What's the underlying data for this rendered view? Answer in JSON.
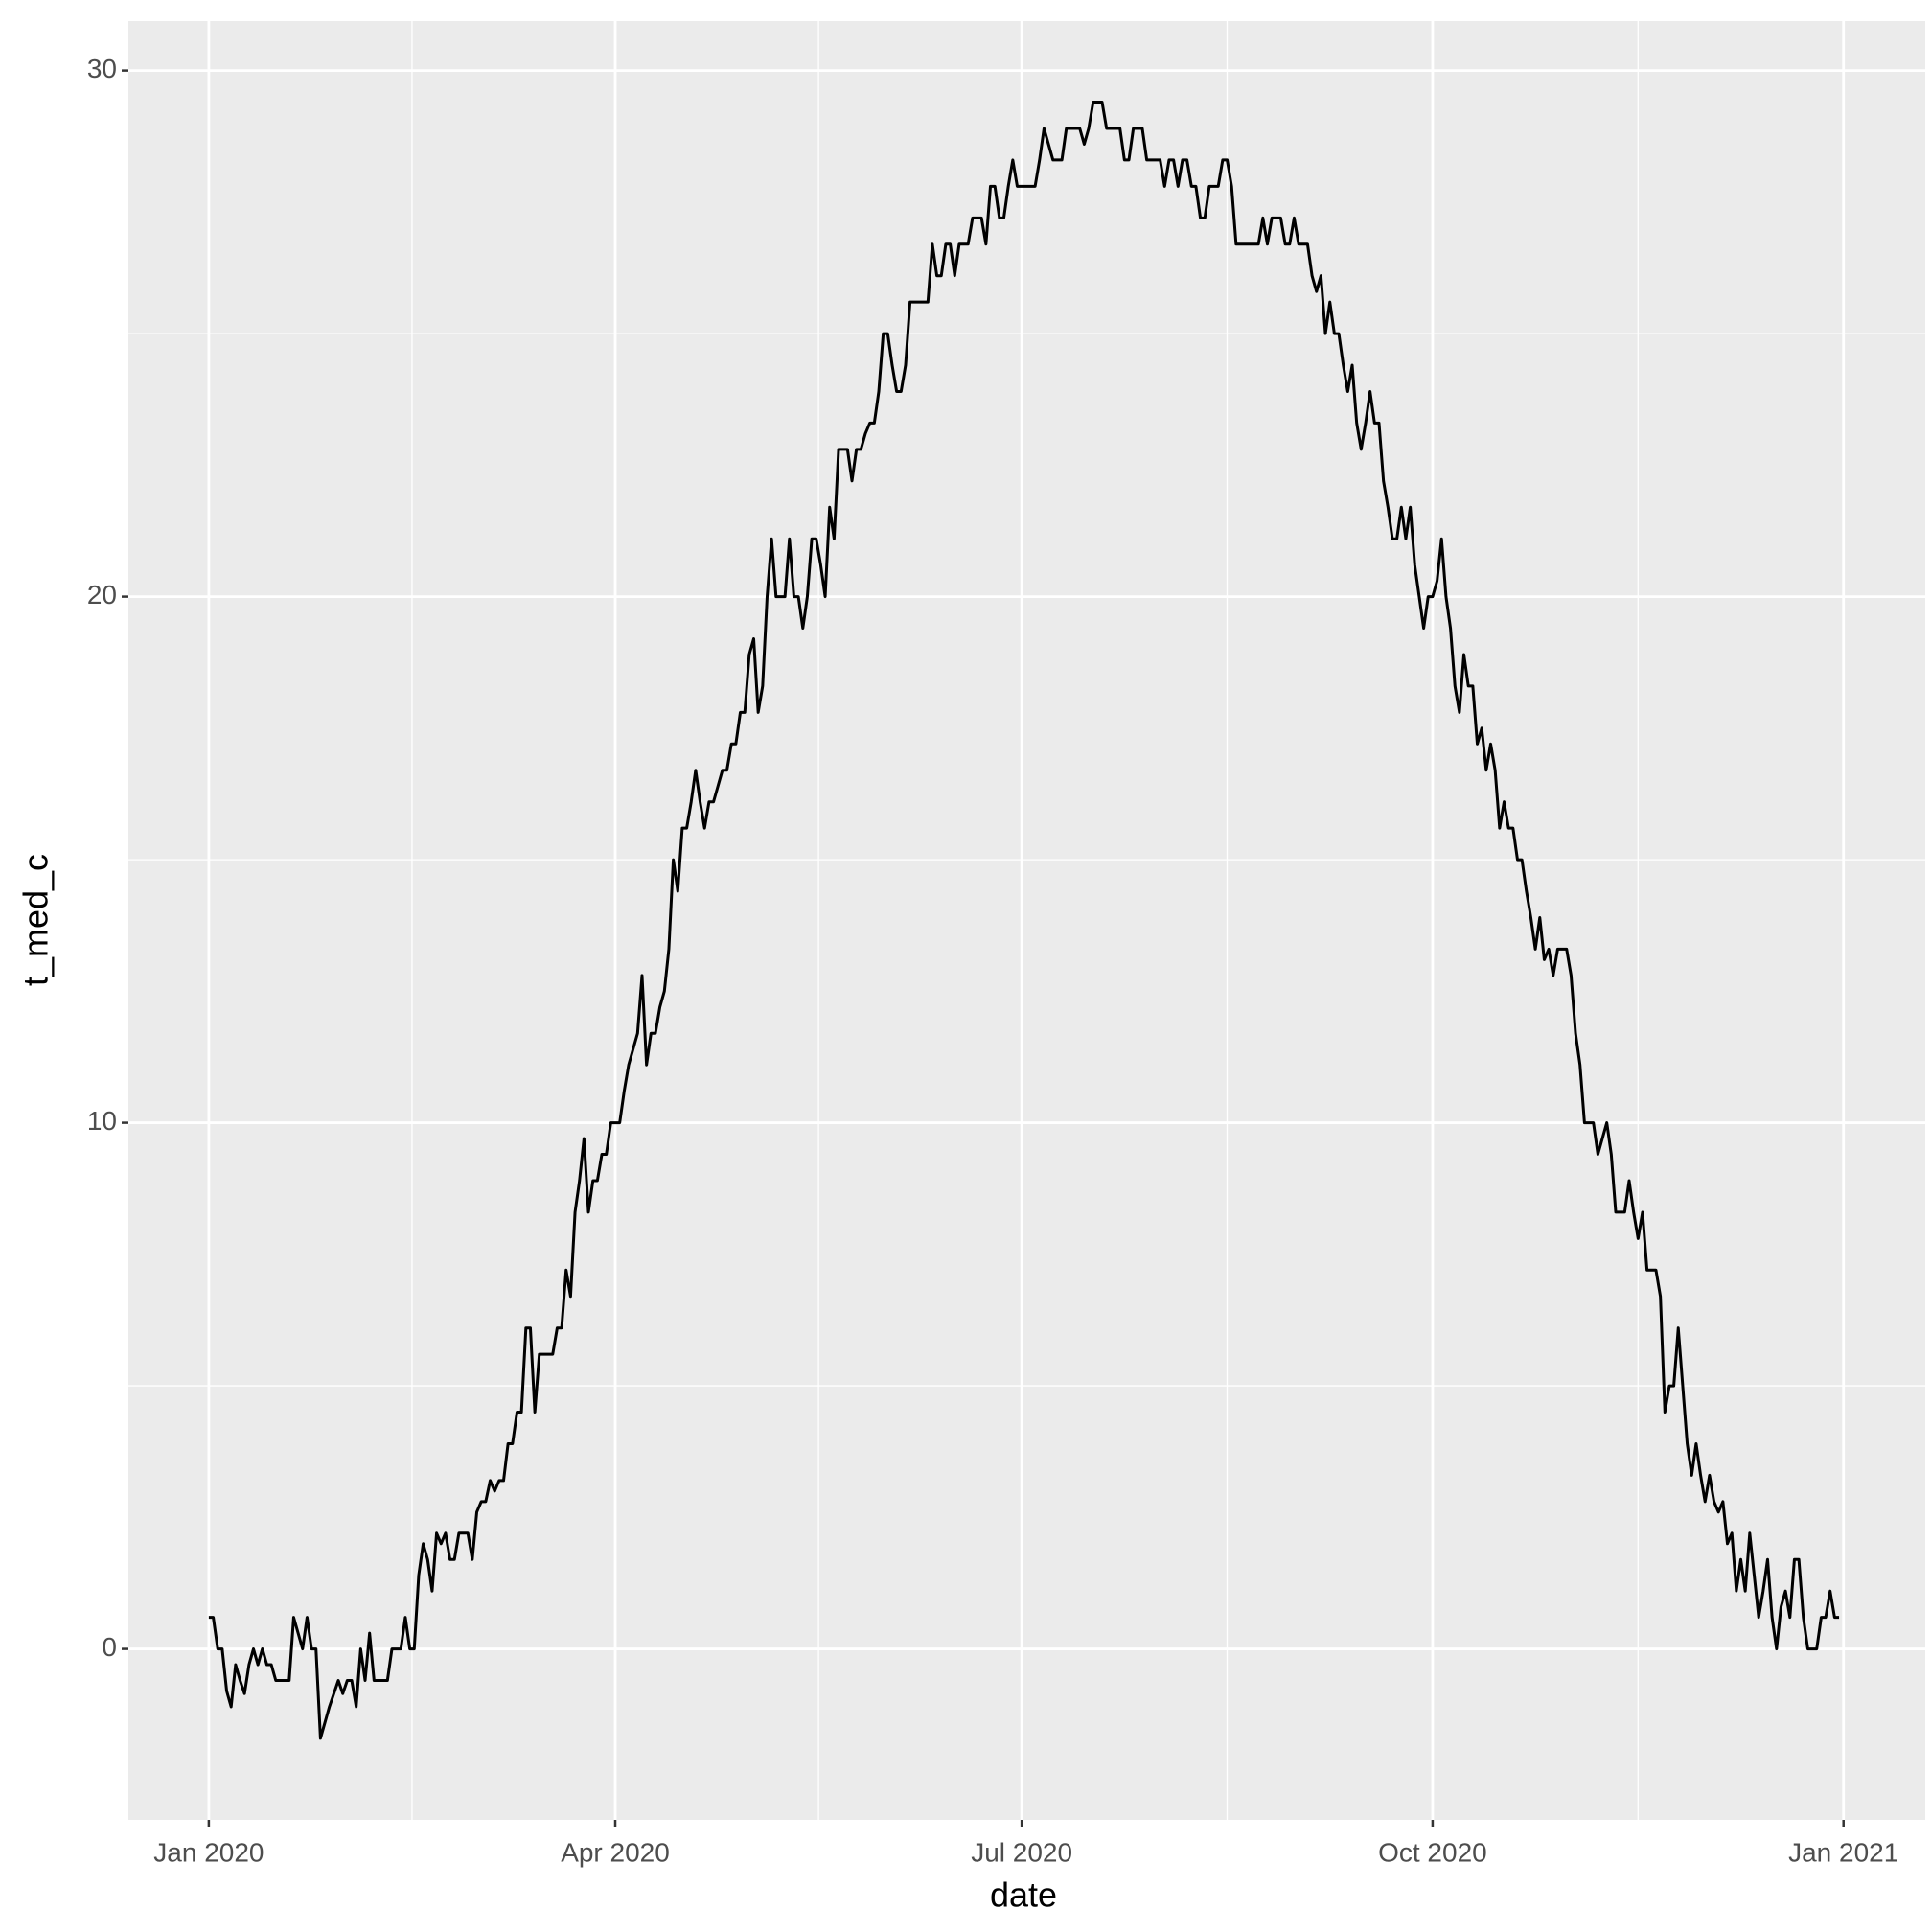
{
  "chart_data": {
    "type": "line",
    "xlabel": "date",
    "ylabel": "t_med_c",
    "xlim": [
      -18,
      384.3
    ],
    "ylim": [
      -3.25,
      30.94
    ],
    "xticks": [
      {
        "value": 0,
        "label": "Jan 2020"
      },
      {
        "value": 91,
        "label": "Apr 2020"
      },
      {
        "value": 182,
        "label": "Jul 2020"
      },
      {
        "value": 274,
        "label": "Oct 2020"
      },
      {
        "value": 366,
        "label": "Jan 2021"
      }
    ],
    "yticks": [
      0,
      10,
      20,
      30
    ],
    "grid": true,
    "series": [
      {
        "color": "#000000",
        "x": [
          0,
          1,
          2,
          3,
          4,
          5,
          6,
          7,
          8,
          9,
          10,
          11,
          12,
          13,
          14,
          15,
          16,
          17,
          18,
          19,
          20,
          21,
          22,
          23,
          24,
          25,
          26,
          27,
          28,
          29,
          30,
          31,
          32,
          33,
          34,
          35,
          36,
          37,
          38,
          39,
          40,
          41,
          42,
          43,
          44,
          45,
          46,
          47,
          48,
          49,
          50,
          51,
          52,
          53,
          54,
          55,
          56,
          57,
          58,
          59,
          60,
          61,
          62,
          63,
          64,
          65,
          66,
          67,
          68,
          69,
          70,
          71,
          72,
          73,
          74,
          75,
          76,
          77,
          78,
          79,
          80,
          81,
          82,
          83,
          84,
          85,
          86,
          87,
          88,
          89,
          90,
          91,
          92,
          93,
          94,
          95,
          96,
          97,
          98,
          99,
          100,
          101,
          102,
          103,
          104,
          105,
          106,
          107,
          108,
          109,
          110,
          111,
          112,
          113,
          114,
          115,
          116,
          117,
          118,
          119,
          120,
          121,
          122,
          123,
          124,
          125,
          126,
          127,
          128,
          129,
          130,
          131,
          132,
          133,
          134,
          135,
          136,
          137,
          138,
          139,
          140,
          141,
          142,
          143,
          144,
          145,
          146,
          147,
          148,
          149,
          150,
          151,
          152,
          153,
          154,
          155,
          156,
          157,
          158,
          159,
          160,
          161,
          162,
          163,
          164,
          165,
          166,
          167,
          168,
          169,
          170,
          171,
          172,
          173,
          174,
          175,
          176,
          177,
          178,
          179,
          180,
          181,
          182,
          183,
          184,
          185,
          186,
          187,
          188,
          189,
          190,
          191,
          192,
          193,
          194,
          195,
          196,
          197,
          198,
          199,
          200,
          201,
          202,
          203,
          204,
          205,
          206,
          207,
          208,
          209,
          210,
          211,
          212,
          213,
          214,
          215,
          216,
          217,
          218,
          219,
          220,
          221,
          222,
          223,
          224,
          225,
          226,
          227,
          228,
          229,
          230,
          231,
          232,
          233,
          234,
          235,
          236,
          237,
          238,
          239,
          240,
          241,
          242,
          243,
          244,
          245,
          246,
          247,
          248,
          249,
          250,
          251,
          252,
          253,
          254,
          255,
          256,
          257,
          258,
          259,
          260,
          261,
          262,
          263,
          264,
          265,
          266,
          267,
          268,
          269,
          270,
          271,
          272,
          273,
          274,
          275,
          276,
          277,
          278,
          279,
          280,
          281,
          282,
          283,
          284,
          285,
          286,
          287,
          288,
          289,
          290,
          291,
          292,
          293,
          294,
          295,
          296,
          297,
          298,
          299,
          300,
          301,
          302,
          303,
          304,
          305,
          306,
          307,
          308,
          309,
          310,
          311,
          312,
          313,
          314,
          315,
          316,
          317,
          318,
          319,
          320,
          321,
          322,
          323,
          324,
          325,
          326,
          327,
          328,
          329,
          330,
          331,
          332,
          333,
          334,
          335,
          336,
          337,
          338,
          339,
          340,
          341,
          342,
          343,
          344,
          345,
          346,
          347,
          348,
          349,
          350,
          351,
          352,
          353,
          354,
          355,
          356,
          357,
          358,
          359,
          360,
          361,
          362,
          363,
          364,
          365
        ],
        "values": [
          0.6,
          0.6,
          0,
          0,
          -0.8,
          -1.1,
          -0.3,
          -0.6,
          -0.85,
          -0.3,
          0,
          -0.3,
          0,
          -0.3,
          -0.3,
          -0.6,
          -0.6,
          -0.6,
          -0.6,
          0.6,
          0.3,
          0,
          0.6,
          0,
          0,
          -1.7,
          -1.4,
          -1.1,
          -0.85,
          -0.6,
          -0.85,
          -0.6,
          -0.6,
          -1.1,
          0,
          -0.6,
          0.3,
          -0.6,
          -0.6,
          -0.6,
          -0.6,
          0,
          0,
          0,
          0.6,
          0,
          0,
          1.4,
          2.0,
          1.7,
          1.1,
          2.2,
          2.0,
          2.2,
          1.7,
          1.7,
          2.2,
          2.2,
          2.2,
          1.7,
          2.6,
          2.8,
          2.8,
          3.2,
          3.0,
          3.2,
          3.2,
          3.9,
          3.9,
          4.5,
          4.5,
          6.1,
          6.1,
          4.5,
          5.6,
          5.6,
          5.6,
          5.6,
          6.1,
          6.1,
          7.2,
          6.7,
          8.3,
          8.9,
          9.7,
          8.3,
          8.9,
          8.9,
          9.4,
          9.4,
          10,
          10,
          10,
          10.6,
          11.1,
          11.4,
          11.7,
          12.8,
          11.1,
          11.7,
          11.7,
          12.2,
          12.5,
          13.3,
          15.0,
          14.4,
          15.6,
          15.6,
          16.1,
          16.7,
          16.1,
          15.6,
          16.1,
          16.1,
          16.4,
          16.7,
          16.7,
          17.2,
          17.2,
          17.8,
          17.8,
          18.9,
          19.2,
          17.8,
          18.3,
          20,
          21.1,
          20,
          20,
          20,
          21.1,
          20,
          20,
          19.4,
          20,
          21.1,
          21.1,
          20.6,
          20,
          21.7,
          21.1,
          22.8,
          22.8,
          22.8,
          22.2,
          22.8,
          22.8,
          23.1,
          23.3,
          23.3,
          23.9,
          25.0,
          25.0,
          24.4,
          23.9,
          23.9,
          24.4,
          25.6,
          25.6,
          25.6,
          25.6,
          25.6,
          26.7,
          26.1,
          26.1,
          26.7,
          26.7,
          26.1,
          26.7,
          26.7,
          26.7,
          27.2,
          27.2,
          27.2,
          26.7,
          27.8,
          27.8,
          27.2,
          27.2,
          27.8,
          28.3,
          27.8,
          27.8,
          27.8,
          27.8,
          27.8,
          28.3,
          28.9,
          28.6,
          28.3,
          28.3,
          28.3,
          28.9,
          28.9,
          28.9,
          28.9,
          28.6,
          28.9,
          29.4,
          29.4,
          29.4,
          28.9,
          28.9,
          28.9,
          28.9,
          28.3,
          28.3,
          28.9,
          28.9,
          28.9,
          28.3,
          28.3,
          28.3,
          28.3,
          27.8,
          28.3,
          28.3,
          27.8,
          28.3,
          28.3,
          27.8,
          27.8,
          27.2,
          27.2,
          27.8,
          27.8,
          27.8,
          28.3,
          28.3,
          27.8,
          26.7,
          26.7,
          26.7,
          26.7,
          26.7,
          26.7,
          27.2,
          26.7,
          27.2,
          27.2,
          27.2,
          26.7,
          26.7,
          27.2,
          26.7,
          26.7,
          26.7,
          26.1,
          25.8,
          26.1,
          25.0,
          25.6,
          25.0,
          25.0,
          24.4,
          23.9,
          24.4,
          23.3,
          22.8,
          23.3,
          23.9,
          23.3,
          23.3,
          22.2,
          21.7,
          21.1,
          21.1,
          21.7,
          21.1,
          21.7,
          20.6,
          20,
          19.4,
          20,
          20,
          20.3,
          21.1,
          20,
          19.4,
          18.3,
          17.8,
          18.9,
          18.3,
          18.3,
          17.2,
          17.5,
          16.7,
          17.2,
          16.7,
          15.6,
          16.1,
          15.6,
          15.6,
          15.0,
          15.0,
          14.4,
          13.9,
          13.3,
          13.9,
          13.1,
          13.3,
          12.8,
          13.3,
          13.3,
          13.3,
          12.8,
          11.7,
          11.1,
          10,
          10,
          10,
          9.4,
          9.7,
          10,
          9.4,
          8.3,
          8.3,
          8.3,
          8.9,
          8.3,
          7.8,
          8.3,
          7.2,
          7.2,
          7.2,
          6.7,
          4.5,
          5.0,
          5.0,
          6.1,
          5.0,
          3.9,
          3.3,
          3.9,
          3.3,
          2.8,
          3.3,
          2.8,
          2.6,
          2.8,
          2.0,
          2.2,
          1.1,
          1.7,
          1.1,
          2.2,
          1.4,
          0.6,
          1.1,
          1.7,
          0.6,
          0,
          0.8,
          1.1,
          0.6,
          1.7,
          1.7,
          0.6,
          0,
          0,
          0,
          0.6,
          0.6,
          1.1,
          0.6,
          0.6
        ]
      }
    ]
  }
}
